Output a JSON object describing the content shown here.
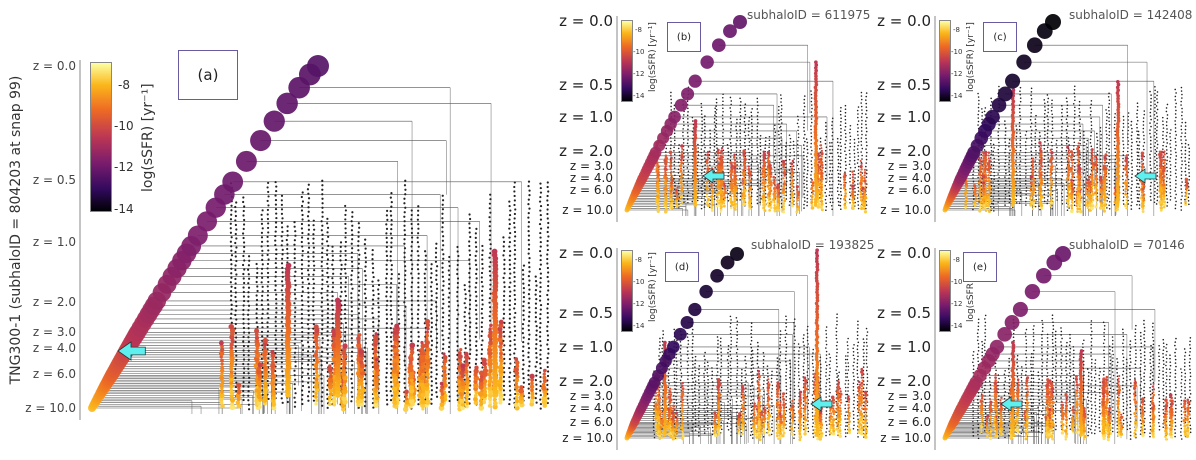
{
  "figure": {
    "y_axis_title": "TNG300-1 (subhaloID = 804203 at snap 99)",
    "colorbar_title": "log(sSFR) [yr⁻¹]",
    "colorbar_ticks": [
      "-8",
      "-10",
      "-12",
      "-14"
    ],
    "colormap": [
      "#fcffa4",
      "#fbb61a",
      "#ed6925",
      "#bc3754",
      "#781c6d",
      "#320a5e",
      "#000004"
    ],
    "arrow_color": "#5ef0ef",
    "z_labels": [
      "z = 0.0",
      "z = 0.5",
      "z = 1.0",
      "z = 2.0",
      "z = 3.0",
      "z = 4.0",
      "z = 6.0",
      "z = 10.0"
    ]
  },
  "panels": [
    {
      "label": "(a)",
      "subhalo_text": "",
      "main_branch_final_log_ssfr": -12.5
    },
    {
      "label": "(b)",
      "subhalo_text": "subhaloID = 611975",
      "main_branch_final_log_ssfr": -12.3
    },
    {
      "label": "(c)",
      "subhalo_text": "subhaloID = 142408",
      "main_branch_final_log_ssfr": -14.0
    },
    {
      "label": "(d)",
      "subhalo_text": "subhaloID = 193825",
      "main_branch_final_log_ssfr": -13.8
    },
    {
      "label": "(e)",
      "subhalo_text": "subhaloID = 70146",
      "main_branch_final_log_ssfr": -12.2
    }
  ]
}
